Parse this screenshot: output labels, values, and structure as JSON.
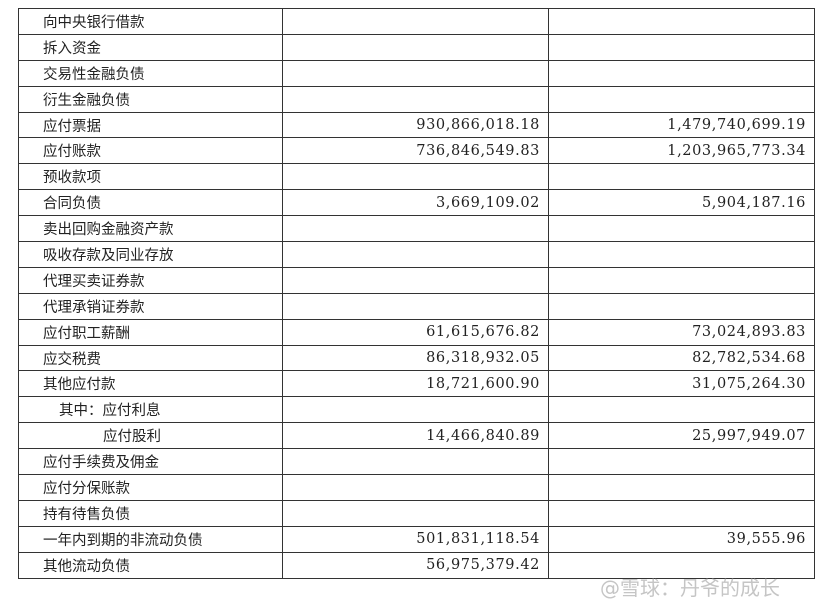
{
  "table": {
    "rows": [
      [
        "向中央银行借款",
        null,
        null
      ],
      [
        "拆入资金",
        null,
        null
      ],
      [
        "交易性金融负债",
        null,
        null
      ],
      [
        "衍生金融负债",
        null,
        null
      ],
      [
        "应付票据",
        "930,866,018.18",
        "1,479,740,699.19"
      ],
      [
        "应付账款",
        "736,846,549.83",
        "1,203,965,773.34"
      ],
      [
        "预收款项",
        null,
        null
      ],
      [
        "合同负债",
        "3,669,109.02",
        "5,904,187.16"
      ],
      [
        "卖出回购金融资产款",
        null,
        null
      ],
      [
        "吸收存款及同业存放",
        null,
        null
      ],
      [
        "代理买卖证券款",
        null,
        null
      ],
      [
        "代理承销证券款",
        null,
        null
      ],
      [
        "应付职工薪酬",
        "61,615,676.82",
        "73,024,893.83"
      ],
      [
        "应交税费",
        "86,318,932.05",
        "82,782,534.68"
      ],
      [
        "其他应付款",
        "18,721,600.90",
        "31,075,264.30"
      ],
      [
        "其中：应付利息",
        null,
        null
      ],
      [
        "应付股利",
        "14,466,840.89",
        "25,997,949.07"
      ],
      [
        "应付手续费及佣金",
        null,
        null
      ],
      [
        "应付分保账款",
        null,
        null
      ],
      [
        "持有待售负债",
        null,
        null
      ],
      [
        "一年内到期的非流动负债",
        "501,831,118.54",
        "39,555.96"
      ],
      [
        "其他流动负债",
        "56,975,379.42",
        null
      ]
    ]
  },
  "watermark": "@雪球：丹爷的成长"
}
